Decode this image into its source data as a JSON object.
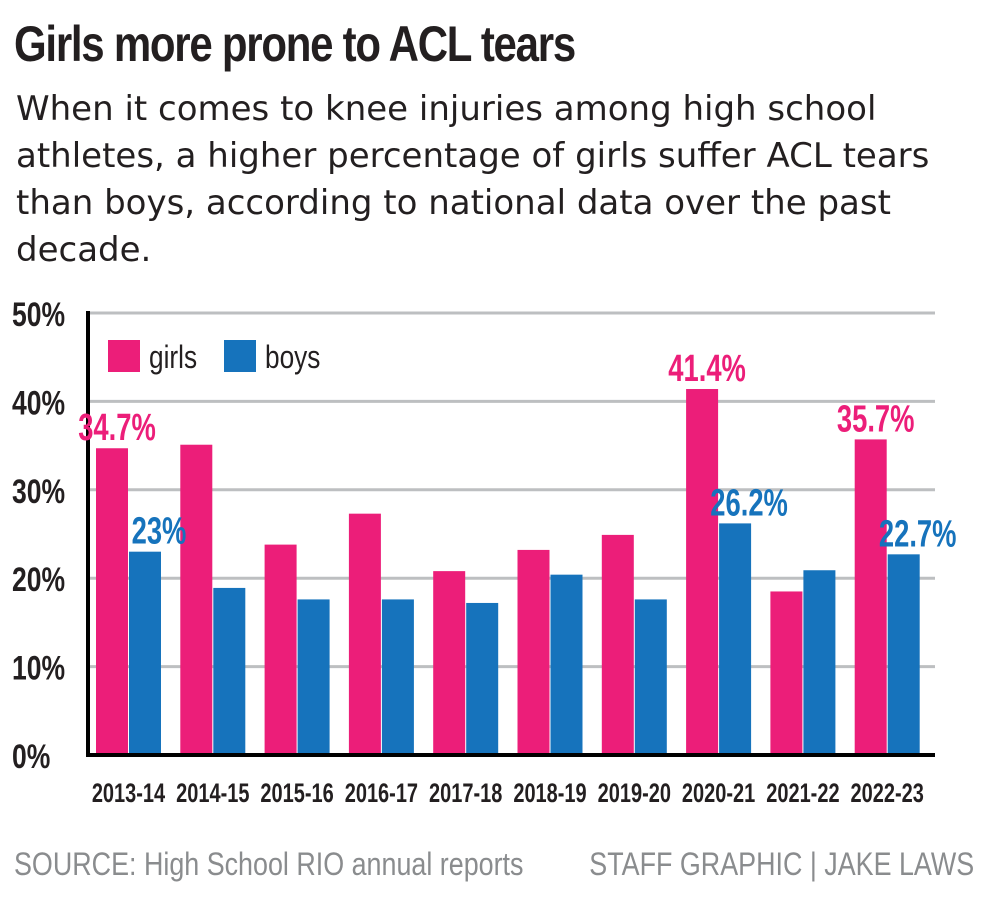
{
  "header": {
    "title": "Girls more prone to ACL tears",
    "subtitle": "When it comes to knee injuries among high school athletes, a higher percentage of girls suffer ACL tears than boys, according to national data over the past decade."
  },
  "footer": {
    "source": "SOURCE: High School RIO annual reports",
    "credit": "STAFF GRAPHIC | JAKE LAWS"
  },
  "colors": {
    "girls": "#ec1e79",
    "boys": "#1673bc",
    "grid": "#bdbfc1",
    "text": "#231f20",
    "muted": "#8a8c8e"
  },
  "chart_data": {
    "type": "bar",
    "categories": [
      "2013-14",
      "2014-15",
      "2015-16",
      "2016-17",
      "2017-18",
      "2018-19",
      "2019-20",
      "2020-21",
      "2021-22",
      "2022-23"
    ],
    "series": [
      {
        "name": "girls",
        "color": "#ec1e79",
        "values": [
          34.7,
          35.1,
          23.8,
          27.3,
          20.8,
          23.2,
          24.9,
          41.4,
          18.5,
          35.7
        ]
      },
      {
        "name": "boys",
        "color": "#1673bc",
        "values": [
          23.0,
          18.9,
          17.6,
          17.6,
          17.2,
          20.4,
          17.6,
          26.2,
          20.9,
          22.7
        ]
      }
    ],
    "data_labels": [
      {
        "series": "girls",
        "category": "2013-14",
        "text": "34.7%"
      },
      {
        "series": "boys",
        "category": "2013-14",
        "text": "23%"
      },
      {
        "series": "girls",
        "category": "2020-21",
        "text": "41.4%"
      },
      {
        "series": "boys",
        "category": "2020-21",
        "text": "26.2%"
      },
      {
        "series": "girls",
        "category": "2022-23",
        "text": "35.7%"
      },
      {
        "series": "boys",
        "category": "2022-23",
        "text": "22.7%"
      }
    ],
    "y_ticks": [
      "0%",
      "10%",
      "20%",
      "30%",
      "40%",
      "50%"
    ],
    "ylim": [
      0,
      50
    ],
    "grid": true,
    "legend": "top-left"
  }
}
